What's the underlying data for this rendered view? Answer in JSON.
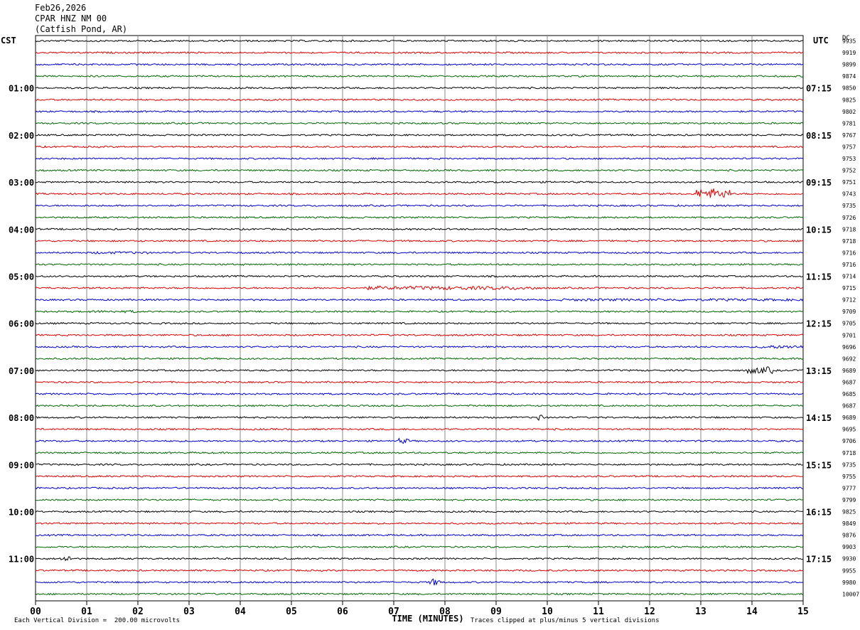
{
  "header": {
    "date": "Feb26,2026",
    "station": "CPAR HNZ NM 00",
    "location": "(Catfish Pond, AR)"
  },
  "left_timezone": "CST",
  "right_timezone": "UTC",
  "dc_label": "DC",
  "footer": {
    "scale_note": "Each Vertical Division =  200.00 microvolts",
    "clip_note": "Traces clipped at plus/minus 5 vertical divisions"
  },
  "colors": {
    "cycle": [
      "#000000",
      "#dd0000",
      "#0000cc",
      "#006600"
    ],
    "grid": "#888888"
  },
  "chart_data": {
    "type": "line",
    "xlabel": "TIME (MINUTES)",
    "x_ticks": [
      "00",
      "01",
      "02",
      "03",
      "04",
      "05",
      "06",
      "07",
      "08",
      "09",
      "10",
      "11",
      "12",
      "13",
      "14",
      "15"
    ],
    "xlim": [
      0,
      15
    ],
    "rows_per_hour": 4,
    "left_hour_labels": [
      "01:00",
      "02:00",
      "03:00",
      "04:00",
      "05:00",
      "06:00",
      "07:00",
      "08:00",
      "09:00",
      "10:00",
      "11:00"
    ],
    "right_hour_labels": [
      "07:15",
      "08:15",
      "09:15",
      "10:15",
      "11:15",
      "12:15",
      "13:15",
      "14:15",
      "15:15",
      "16:15",
      "17:15"
    ],
    "dc_offsets": [
      9935,
      9919,
      9899,
      9874,
      9850,
      9825,
      9802,
      9781,
      9767,
      9757,
      9753,
      9752,
      9751,
      9743,
      9735,
      9726,
      9718,
      9718,
      9716,
      9716,
      9714,
      9715,
      9712,
      9709,
      9705,
      9701,
      9696,
      9692,
      9689,
      9687,
      9685,
      9687,
      9689,
      9695,
      9706,
      9718,
      9735,
      9755,
      9777,
      9799,
      9825,
      9849,
      9876,
      9903,
      9930,
      9955,
      9980,
      10007
    ],
    "events": [
      {
        "row": 13,
        "start": 12.9,
        "end": 13.6,
        "amp": 6
      },
      {
        "row": 21,
        "start": 6.4,
        "end": 9.8,
        "amp": 2.2
      },
      {
        "row": 22,
        "start": 10.2,
        "end": 15,
        "amp": 1.5
      },
      {
        "row": 18,
        "start": 1.1,
        "end": 2.2,
        "amp": 1.5
      },
      {
        "row": 23,
        "start": 1.0,
        "end": 2.0,
        "amp": 1.5
      },
      {
        "row": 26,
        "start": 14.1,
        "end": 15,
        "amp": 2
      },
      {
        "row": 28,
        "start": 13.9,
        "end": 14.4,
        "amp": 4
      },
      {
        "row": 32,
        "start": 9.8,
        "end": 9.9,
        "amp": 5
      },
      {
        "row": 34,
        "start": 7.1,
        "end": 7.3,
        "amp": 3
      },
      {
        "row": 44,
        "start": 0.5,
        "end": 0.7,
        "amp": 4
      },
      {
        "row": 46,
        "start": 7.7,
        "end": 7.9,
        "amp": 4
      }
    ]
  }
}
